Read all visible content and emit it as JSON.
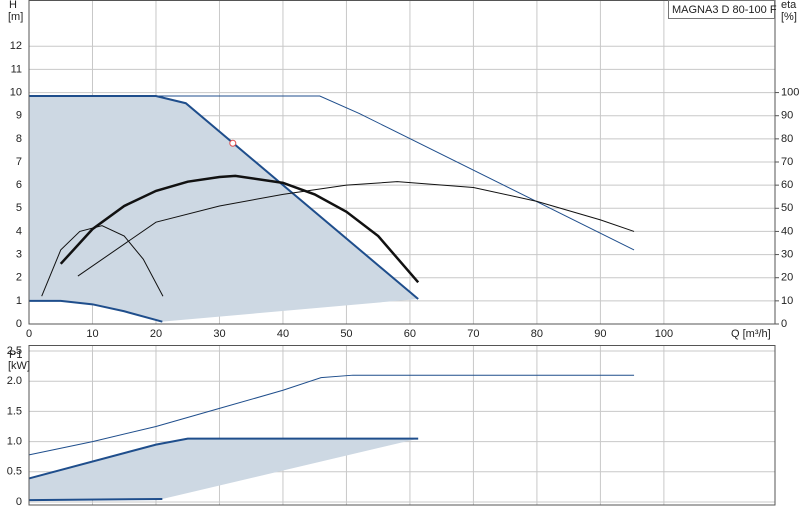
{
  "chart_data": [
    {
      "type": "line",
      "title": "MAGNA3 D 80-100 F",
      "ylabel": "H",
      "yunit": "[m]",
      "y2label": "eta",
      "y2unit": "[%]",
      "xlabel": "Q [m³/h]",
      "xlim": [
        0,
        117.5
      ],
      "xticks": [
        0,
        10,
        20,
        30,
        40,
        50,
        60,
        70,
        80,
        90,
        100
      ],
      "ylim": [
        0,
        14
      ],
      "yticks": [
        0,
        1,
        2,
        3,
        4,
        5,
        6,
        7,
        8,
        9,
        10,
        11,
        12
      ],
      "y2lim": [
        0,
        140
      ],
      "y2ticks": [
        0,
        10,
        20,
        30,
        40,
        50,
        60,
        70,
        80,
        90,
        100
      ],
      "grid": true,
      "series": [
        {
          "color": "#1f4e8c",
          "width": 1,
          "x": [
            0,
            45.8,
            52,
            95.3
          ],
          "values": [
            9.85,
            9.85,
            9.1,
            3.2
          ]
        },
        {
          "color": "#1f4e8c",
          "width": 2,
          "x": [
            0,
            20,
            24.7,
            61.3
          ],
          "values": [
            9.85,
            9.85,
            9.54,
            1.08
          ],
          "fill": "#cdd8e3"
        },
        {
          "color": "#1f4e8c",
          "width": 2,
          "x": [
            0,
            5,
            10,
            15,
            21
          ],
          "values": [
            1,
            1,
            0.85,
            0.55,
            0.1
          ]
        },
        {
          "color": "#111111",
          "width": 1,
          "axis": "y2",
          "x": [
            7.7,
            20,
            30,
            40,
            50,
            58,
            70,
            80,
            90,
            95.3
          ],
          "values": [
            20.7,
            44,
            51,
            56,
            60,
            61.5,
            59,
            53,
            45,
            40
          ]
        },
        {
          "color": "#111111",
          "width": 1,
          "axis": "y2",
          "x": [
            2,
            5,
            8,
            11.5,
            15,
            18,
            21.1
          ],
          "values": [
            12,
            32,
            40,
            42.5,
            38,
            28,
            12
          ]
        },
        {
          "color": "#111111",
          "width": 2.5,
          "axis": "y2",
          "x": [
            5,
            10,
            15,
            20,
            25,
            30,
            32.5,
            40,
            45,
            50,
            55,
            61.3
          ],
          "values": [
            26,
            41,
            51,
            57.5,
            61.5,
            63.5,
            64,
            61,
            56,
            48.5,
            38,
            18
          ]
        }
      ],
      "operating_point": {
        "x": 32.1,
        "y": 7.81,
        "color": "#e05050"
      }
    },
    {
      "type": "line",
      "ylabel": "P1",
      "yunit": "[kW]",
      "xlim": [
        0,
        117.5
      ],
      "xticks": [
        0,
        10,
        20,
        30,
        40,
        50,
        60,
        70,
        80,
        90,
        100
      ],
      "ylim": [
        -0.05,
        2.6
      ],
      "yticks": [
        0,
        0.5,
        {
          "value": 1,
          "label": "1.0"
        },
        1.5,
        {
          "value": 2,
          "label": "2.0"
        },
        2.5
      ],
      "grid": true,
      "series": [
        {
          "color": "#1f4e8c",
          "width": 1,
          "x": [
            0,
            10,
            20,
            30,
            40,
            46,
            51,
            95.3
          ],
          "values": [
            0.78,
            1.0,
            1.25,
            1.55,
            1.85,
            2.06,
            2.1,
            2.1
          ]
        },
        {
          "color": "#1f4e8c",
          "width": 2,
          "x": [
            0,
            20,
            25,
            61.3
          ],
          "values": [
            0.39,
            0.95,
            1.05,
            1.05
          ],
          "fill": "#cdd8e3"
        },
        {
          "color": "#1f4e8c",
          "width": 2,
          "x": [
            0,
            21
          ],
          "values": [
            0.03,
            0.05
          ]
        }
      ]
    }
  ]
}
